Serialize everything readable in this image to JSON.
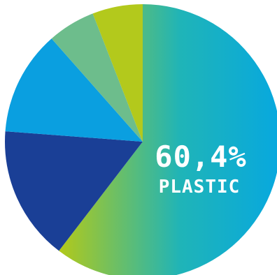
{
  "chart_data": {
    "type": "pie",
    "title": "",
    "slices": [
      {
        "label": "PLASTIC",
        "value": 60.4,
        "value_label": "60,4%",
        "color_start": "#b2c91a",
        "color_mid": "#1fb4b8",
        "color_end": "#07a8df"
      },
      {
        "label": "",
        "value": 15.8,
        "color": "#1a3f96"
      },
      {
        "label": "",
        "value": 12.3,
        "color": "#0a9fe0"
      },
      {
        "label": "",
        "value": 5.6,
        "color": "#6dbd8c"
      },
      {
        "label": "",
        "value": 5.9,
        "color": "#b3c91c"
      }
    ]
  }
}
